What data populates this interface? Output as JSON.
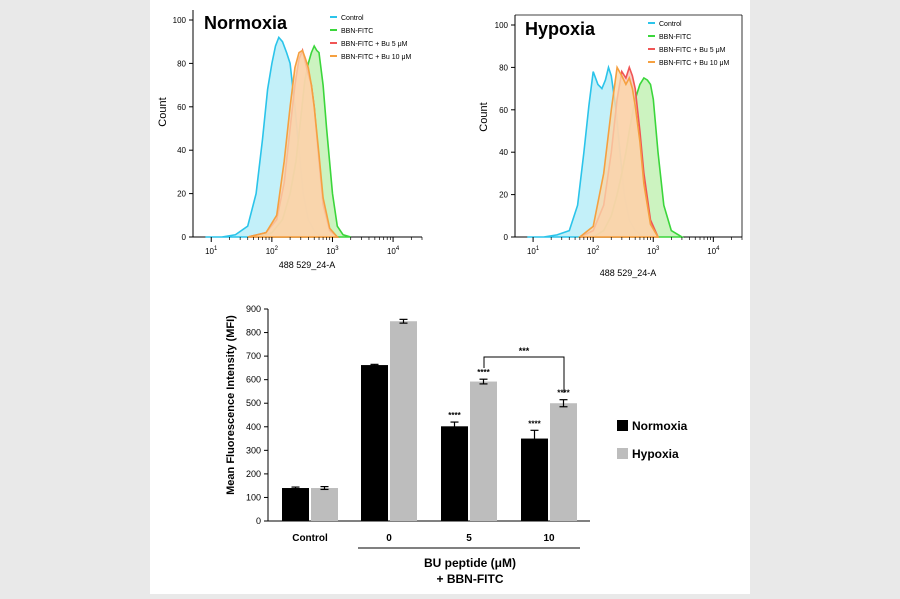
{
  "chart_data": [
    {
      "type": "area",
      "title": "Normoxia",
      "xlabel": "488 529_24-A",
      "ylabel": "Count",
      "x_scale": "log",
      "xlim": [
        5,
        30000
      ],
      "ylim": [
        0,
        100
      ],
      "x_tick_labels": [
        {
          "base": "10",
          "exp": "1"
        },
        {
          "base": "10",
          "exp": "2"
        },
        {
          "base": "10",
          "exp": "3"
        },
        {
          "base": "10",
          "exp": "4"
        }
      ],
      "y_ticks": [
        0,
        20,
        40,
        60,
        80,
        100
      ],
      "legend_position": "top-right",
      "series": [
        {
          "name": "Control",
          "color": "#2bc4ea",
          "fill": "#b4ecf8",
          "x": [
            8,
            15,
            25,
            40,
            55,
            70,
            85,
            100,
            115,
            130,
            150,
            175,
            200,
            240,
            280,
            330,
            400,
            500,
            600,
            800,
            1200
          ],
          "y": [
            0,
            0,
            1,
            5,
            20,
            45,
            68,
            80,
            88,
            92,
            90,
            85,
            80,
            60,
            40,
            20,
            8,
            3,
            1,
            0,
            0
          ]
        },
        {
          "name": "BBN-FITC",
          "color": "#3bd63b",
          "fill": "#bff0b0",
          "x": [
            60,
            100,
            150,
            200,
            250,
            300,
            350,
            400,
            450,
            500,
            550,
            600,
            700,
            800,
            1000,
            1200,
            1500,
            2000
          ],
          "y": [
            0,
            2,
            8,
            20,
            35,
            55,
            72,
            80,
            85,
            88,
            86,
            85,
            70,
            50,
            20,
            5,
            1,
            0
          ]
        },
        {
          "name": "BBN-FITC + Bu 5 μM",
          "color": "#f05555",
          "fill": "#f8c2b6",
          "x": [
            40,
            80,
            120,
            160,
            200,
            240,
            280,
            320,
            360,
            400,
            450,
            500,
            600,
            700,
            900,
            1200
          ],
          "y": [
            0,
            2,
            8,
            25,
            50,
            70,
            82,
            86,
            80,
            75,
            70,
            60,
            35,
            15,
            3,
            0
          ]
        },
        {
          "name": "BBN-FITC + Bu 10 μM",
          "color": "#f5a040",
          "fill": "#fbd7a9",
          "x": [
            40,
            80,
            120,
            160,
            200,
            240,
            280,
            320,
            360,
            400,
            450,
            500,
            600,
            700,
            900,
            1200
          ],
          "y": [
            0,
            2,
            10,
            35,
            60,
            78,
            85,
            86,
            82,
            78,
            70,
            60,
            38,
            18,
            4,
            0
          ]
        }
      ]
    },
    {
      "type": "area",
      "title": "Hypoxia",
      "xlabel": "488 529_24-A",
      "ylabel": "Count",
      "x_scale": "log",
      "xlim": [
        5,
        30000
      ],
      "ylim": [
        0,
        100
      ],
      "x_tick_labels": [
        {
          "base": "10",
          "exp": "1"
        },
        {
          "base": "10",
          "exp": "2"
        },
        {
          "base": "10",
          "exp": "3"
        },
        {
          "base": "10",
          "exp": "4"
        }
      ],
      "y_ticks": [
        0,
        20,
        40,
        60,
        80,
        100
      ],
      "legend_position": "top-right",
      "series": [
        {
          "name": "Control",
          "color": "#2bc4ea",
          "fill": "#b4ecf8",
          "x": [
            8,
            15,
            25,
            40,
            55,
            70,
            85,
            100,
            120,
            140,
            160,
            180,
            200,
            240,
            280,
            330,
            400,
            500,
            700,
            1000
          ],
          "y": [
            0,
            0,
            1,
            3,
            15,
            40,
            62,
            78,
            72,
            70,
            74,
            80,
            76,
            60,
            40,
            20,
            8,
            3,
            0,
            0
          ]
        },
        {
          "name": "BBN-FITC",
          "color": "#3bd63b",
          "fill": "#bff0b0",
          "x": [
            100,
            150,
            200,
            250,
            300,
            350,
            400,
            450,
            500,
            600,
            700,
            800,
            900,
            1000,
            1200,
            1500,
            2000,
            3000
          ],
          "y": [
            0,
            3,
            10,
            20,
            30,
            40,
            50,
            58,
            65,
            72,
            75,
            74,
            72,
            65,
            40,
            15,
            3,
            0
          ]
        },
        {
          "name": "BBN-FITC + Bu 5 μM",
          "color": "#f05555",
          "fill": "#f8c2b6",
          "x": [
            60,
            100,
            150,
            200,
            250,
            300,
            350,
            400,
            450,
            500,
            600,
            700,
            900,
            1200
          ],
          "y": [
            0,
            3,
            15,
            40,
            65,
            78,
            75,
            80,
            76,
            70,
            50,
            30,
            8,
            0
          ]
        },
        {
          "name": "BBN-FITC + Bu 10 μM",
          "color": "#f5a040",
          "fill": "#fbd7a9",
          "x": [
            60,
            100,
            150,
            200,
            250,
            300,
            350,
            400,
            450,
            500,
            600,
            700,
            900,
            1200
          ],
          "y": [
            0,
            5,
            30,
            60,
            80,
            76,
            72,
            75,
            70,
            62,
            45,
            25,
            6,
            0
          ]
        }
      ]
    },
    {
      "type": "bar",
      "ylabel": "Mean Fluorescence Intensity (MFI)",
      "ylim": [
        0,
        900
      ],
      "y_ticks": [
        0,
        100,
        200,
        300,
        400,
        500,
        600,
        700,
        800,
        900
      ],
      "categories": [
        "Control",
        "0",
        "5",
        "10"
      ],
      "group_label_line1": "BU peptide (μM)",
      "group_label_line2": "+ BBN-FITC",
      "legend_position": "right",
      "series": [
        {
          "name": "Normoxia",
          "color": "#000000",
          "values": [
            140,
            662,
            402,
            350
          ],
          "errors": [
            4,
            3,
            18,
            35
          ],
          "sig": [
            "",
            "",
            "****",
            "****"
          ]
        },
        {
          "name": "Hypoxia",
          "color": "#bdbdbd",
          "values": [
            140,
            848,
            592,
            500
          ],
          "errors": [
            6,
            8,
            10,
            15
          ],
          "sig": [
            "",
            "",
            "****",
            "****"
          ]
        }
      ],
      "bracket_label": "***"
    }
  ]
}
